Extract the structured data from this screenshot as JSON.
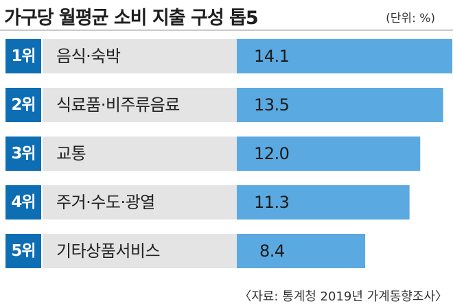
{
  "header": {
    "title": "가구당 월평균 소비 지출 구성 톱5",
    "unit": "(단위: %)"
  },
  "source": "〈자료: 통계청 2019년 가계동향조사〉",
  "colors": {
    "rank_box": "#0e6eb4",
    "label_bg": "#e4e4e4",
    "bar": "#5aa9e1",
    "text": "#222222"
  },
  "chart_data": {
    "type": "bar",
    "orientation": "horizontal",
    "title": "가구당 월평균 소비 지출 구성 톱5",
    "unit": "%",
    "ranks": [
      "1위",
      "2위",
      "3위",
      "4위",
      "5위"
    ],
    "categories": [
      "음식·숙박",
      "식료품·비주류음료",
      "교통",
      "주거·수도·광열",
      "기타상품서비스"
    ],
    "values": [
      14.1,
      13.5,
      12.0,
      11.3,
      8.4
    ],
    "value_labels": [
      "14.1",
      "13.5",
      "12.0",
      "11.3",
      "8.4"
    ]
  }
}
